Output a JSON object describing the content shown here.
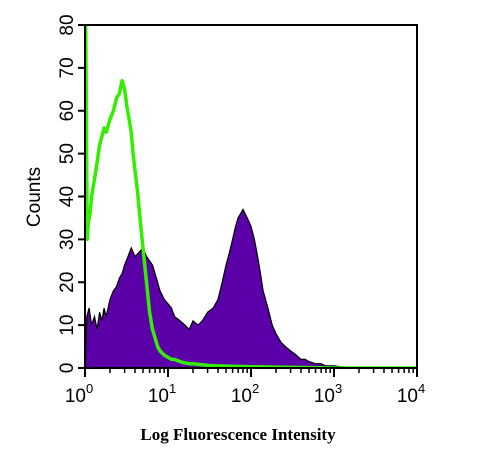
{
  "chart_data": {
    "type": "area",
    "xlabel": "Log Fluorescence Intensity",
    "ylabel": "Counts",
    "xscale": "log",
    "xlim": [
      1,
      10000
    ],
    "ylim": [
      0,
      80
    ],
    "x_ticks": [
      {
        "base": "10",
        "exp": "0",
        "value": 1
      },
      {
        "base": "10",
        "exp": "1",
        "value": 10
      },
      {
        "base": "10",
        "exp": "2",
        "value": 100
      },
      {
        "base": "10",
        "exp": "3",
        "value": 1000
      },
      {
        "base": "10",
        "exp": "4",
        "value": 10000
      }
    ],
    "y_ticks": [
      "0",
      "10",
      "20",
      "30",
      "40",
      "50",
      "60",
      "70",
      "80"
    ],
    "grid": false,
    "series": [
      {
        "style": "filled",
        "color": "#5B00A8",
        "outline": "#000000",
        "x": [
          1.0,
          1.05,
          1.12,
          1.2,
          1.3,
          1.4,
          1.5,
          1.6,
          1.7,
          1.8,
          2.0,
          2.2,
          2.4,
          2.6,
          2.8,
          3.0,
          3.3,
          3.6,
          4.0,
          4.5,
          5.0,
          5.5,
          6.0,
          6.5,
          7.0,
          7.5,
          8.0,
          9.0,
          10,
          11,
          12,
          14,
          16,
          18,
          20,
          23,
          26,
          30,
          35,
          40,
          45,
          50,
          55,
          60,
          65,
          70,
          75,
          80,
          85,
          90,
          95,
          100,
          110,
          120,
          130,
          140,
          160,
          180,
          200,
          230,
          260,
          300,
          350,
          400,
          450,
          500,
          600,
          700,
          800,
          1000,
          1200,
          1500,
          2000,
          3000,
          5000,
          10000
        ],
        "y": [
          0,
          12,
          14,
          10,
          12,
          9,
          13,
          11,
          14,
          12,
          16,
          18,
          19,
          21,
          22,
          24,
          26,
          28,
          26,
          27,
          28,
          26,
          25,
          24,
          22,
          20,
          18,
          16,
          15,
          14,
          12,
          11,
          10,
          9,
          11,
          10,
          11,
          13,
          14,
          16,
          20,
          24,
          27,
          30,
          33,
          35,
          36,
          37,
          36,
          35,
          34,
          33,
          30,
          26,
          22,
          18,
          14,
          10,
          8,
          6,
          5,
          4,
          3,
          2,
          2,
          1.5,
          1,
          1,
          0.5,
          0.5,
          0.3,
          0.2,
          0,
          0,
          0,
          0
        ]
      },
      {
        "style": "line",
        "color": "#33EE00",
        "x": [
          1.0,
          1.02,
          1.04,
          1.06,
          1.1,
          1.15,
          1.2,
          1.3,
          1.4,
          1.5,
          1.6,
          1.7,
          1.8,
          2.0,
          2.2,
          2.4,
          2.6,
          2.8,
          3.0,
          3.2,
          3.4,
          3.6,
          3.8,
          4.0,
          4.3,
          4.6,
          5.0,
          5.5,
          6.0,
          6.5,
          7.0,
          7.5,
          8.0,
          9.0,
          10,
          11,
          12,
          14,
          16,
          18,
          20,
          25,
          30,
          40,
          60,
          100,
          200,
          500,
          1000,
          10000
        ],
        "y": [
          80,
          80,
          60,
          30,
          34,
          36,
          40,
          44,
          48,
          52,
          54,
          56,
          55,
          58,
          60,
          63,
          64,
          67,
          65,
          61,
          58,
          55,
          50,
          46,
          41,
          35,
          28,
          20,
          13,
          9,
          7,
          5,
          4,
          3,
          2.5,
          2,
          2,
          1.5,
          1.2,
          1,
          1,
          0.8,
          0.6,
          0.5,
          0.4,
          0.3,
          0.2,
          0.1,
          0,
          0
        ]
      }
    ]
  }
}
